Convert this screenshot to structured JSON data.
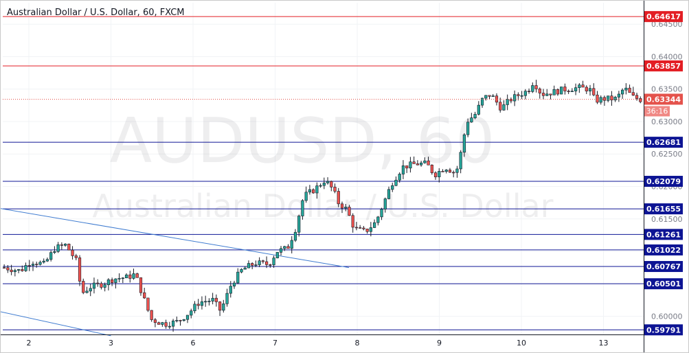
{
  "chart_data": {
    "type": "candlestick",
    "title": "Australian Dollar / U.S. Dollar, 60, FXCM",
    "watermark": {
      "symbol": "AUDUSD, 60",
      "name": "Australian Dollar / U.S. Dollar"
    },
    "y_range": [
      0.5972,
      0.6483
    ],
    "y_ticks": [
      {
        "value": 0.645,
        "label": "0.64500"
      },
      {
        "value": 0.64,
        "label": "0.64000"
      },
      {
        "value": 0.635,
        "label": "0.63500"
      },
      {
        "value": 0.63,
        "label": "0.63000"
      },
      {
        "value": 0.625,
        "label": "0.62500"
      },
      {
        "value": 0.62,
        "label": "0.62000"
      },
      {
        "value": 0.615,
        "label": "0.61500"
      },
      {
        "value": 0.61,
        "label": "0.61000"
      },
      {
        "value": 0.605,
        "label": "0.60500"
      },
      {
        "value": 0.6,
        "label": "0.60000"
      }
    ],
    "x_labels": [
      {
        "label": "2",
        "day": 2
      },
      {
        "label": "3",
        "day": 3
      },
      {
        "label": "6",
        "day": 4
      },
      {
        "label": "7",
        "day": 5
      },
      {
        "label": "8",
        "day": 6
      },
      {
        "label": "9",
        "day": 7
      },
      {
        "label": "10",
        "day": 8
      },
      {
        "label": "13",
        "day": 9
      }
    ],
    "resistance_levels": [
      {
        "value": 0.64617,
        "label": "0.64617"
      },
      {
        "value": 0.63857,
        "label": "0.63857"
      }
    ],
    "support_levels": [
      {
        "value": 0.62681,
        "label": "0.62681"
      },
      {
        "value": 0.62079,
        "label": "0.62079"
      },
      {
        "value": 0.61655,
        "label": "0.61655"
      },
      {
        "value": 0.61261,
        "label": "0.61261"
      },
      {
        "value": 0.61022,
        "label": "0.61022"
      },
      {
        "value": 0.60767,
        "label": "0.60767"
      },
      {
        "value": 0.60501,
        "label": "0.60501"
      },
      {
        "value": 0.59791,
        "label": "0.59791"
      }
    ],
    "current_price": {
      "value": 0.63344,
      "label": "0.63344",
      "countdown": "36:16"
    },
    "trendlines": [
      {
        "from": {
          "day": 1.0,
          "price": 0.618
        },
        "to": {
          "day": 5.9,
          "price": 0.6075
        }
      },
      {
        "from": {
          "day": 1.0,
          "price": 0.6025
        },
        "to": {
          "day": 3.0,
          "price": 0.597
        }
      }
    ],
    "path_points": [
      [
        1.0,
        0.6075
      ],
      [
        1.3,
        0.607
      ],
      [
        1.5,
        0.6085
      ],
      [
        1.75,
        0.608
      ],
      [
        1.95,
        0.6105
      ],
      [
        2.15,
        0.611
      ],
      [
        2.35,
        0.6085
      ],
      [
        2.45,
        0.6035
      ],
      [
        2.6,
        0.6045
      ],
      [
        2.85,
        0.605
      ],
      [
        3.05,
        0.6058
      ],
      [
        3.3,
        0.606
      ],
      [
        3.45,
        0.6065
      ],
      [
        3.6,
        0.603
      ],
      [
        3.75,
        0.5995
      ],
      [
        4.0,
        0.5988
      ],
      [
        4.25,
        0.5992
      ],
      [
        4.45,
        0.6005
      ],
      [
        4.65,
        0.6022
      ],
      [
        4.9,
        0.6025
      ],
      [
        5.05,
        0.6008
      ],
      [
        5.25,
        0.605
      ],
      [
        5.45,
        0.6072
      ],
      [
        5.7,
        0.6082
      ],
      [
        5.95,
        0.608
      ],
      [
        6.1,
        0.61
      ],
      [
        6.3,
        0.6105
      ],
      [
        6.45,
        0.6135
      ],
      [
        6.6,
        0.6185
      ],
      [
        6.8,
        0.6195
      ],
      [
        7.0,
        0.621
      ],
      [
        7.15,
        0.6195
      ],
      [
        7.25,
        0.6175
      ],
      [
        7.4,
        0.6165
      ],
      [
        7.55,
        0.6135
      ],
      [
        7.75,
        0.613
      ],
      [
        7.95,
        0.6145
      ],
      [
        8.1,
        0.6175
      ],
      [
        8.25,
        0.6205
      ],
      [
        8.45,
        0.623
      ],
      [
        8.7,
        0.6235
      ],
      [
        8.9,
        0.6235
      ],
      [
        9.05,
        0.6218
      ],
      [
        9.25,
        0.623
      ],
      [
        9.45,
        0.622
      ],
      [
        9.55,
        0.6255
      ],
      [
        9.65,
        0.63
      ],
      [
        9.8,
        0.631
      ],
      [
        9.95,
        0.6335
      ],
      [
        10.1,
        0.6342
      ],
      [
        10.3,
        0.632
      ],
      [
        10.45,
        0.6333
      ],
      [
        10.6,
        0.634
      ],
      [
        10.8,
        0.6348
      ],
      [
        10.9,
        0.6362
      ],
      [
        11.05,
        0.6342
      ],
      [
        11.25,
        0.6345
      ],
      [
        11.5,
        0.635
      ],
      [
        11.75,
        0.6352
      ],
      [
        11.95,
        0.635
      ],
      [
        12.05,
        0.6332
      ],
      [
        12.2,
        0.6335
      ],
      [
        12.45,
        0.6335
      ],
      [
        12.6,
        0.6352
      ],
      [
        12.75,
        0.6338
      ],
      [
        12.9,
        0.6334
      ]
    ],
    "colors": {
      "up": "#26a69a",
      "down": "#ef5350",
      "candle_body_stroke": "#131722",
      "resistance": "#e31e24",
      "support": "#0d1494",
      "trendline": "#3e7bd0",
      "current_price": "#e4524b",
      "countdown_bg": "#f08783",
      "grid": "#f1f3f6",
      "axis": "#131722",
      "watermark": "rgba(120, 123, 134, 0.12)"
    }
  }
}
